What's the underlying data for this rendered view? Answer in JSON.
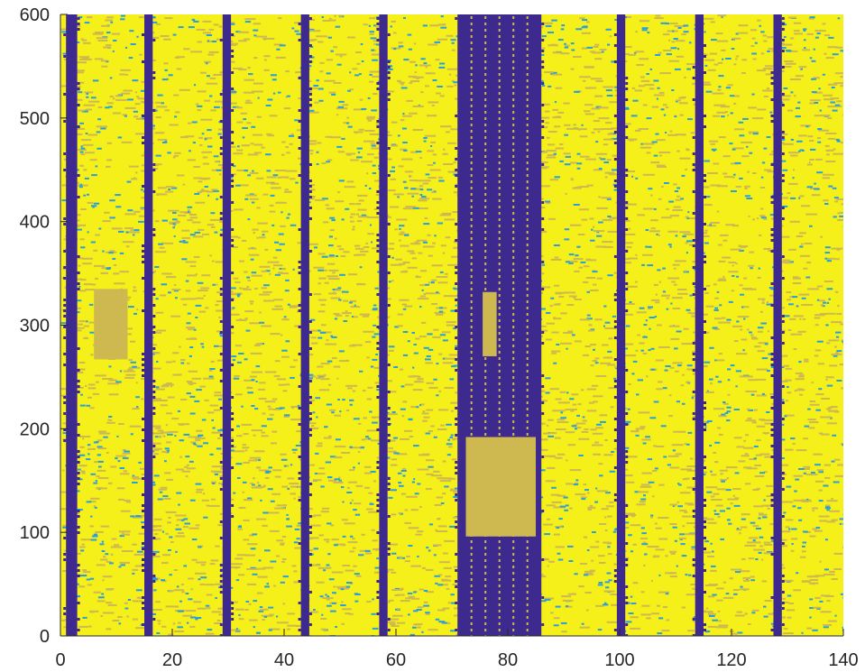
{
  "chart_data": {
    "type": "heatmap",
    "title": "",
    "xlabel": "",
    "ylabel": "",
    "xlim": [
      0,
      140
    ],
    "ylim": [
      0,
      600
    ],
    "xticks": [
      0,
      20,
      40,
      60,
      80,
      100,
      120,
      140
    ],
    "yticks": [
      0,
      100,
      200,
      300,
      400,
      500,
      600
    ],
    "xtick_labels": [
      "0",
      "20",
      "40",
      "60",
      "80",
      "100",
      "120",
      "140"
    ],
    "ytick_labels": [
      "0",
      "100",
      "200",
      "300",
      "400",
      "500",
      "600"
    ],
    "grid": false,
    "colormap": [
      "#3e2a8e",
      "#2b9fd8",
      "#cdb94f",
      "#f5ef1a"
    ],
    "background_pattern": "noise of cyan, tan and yellow cells",
    "bands": [
      {
        "x": [
          1,
          3
        ],
        "y": [
          0,
          600
        ],
        "color": "#3e2a8e"
      },
      {
        "x": [
          15,
          16.5
        ],
        "y": [
          0,
          600
        ],
        "color": "#3e2a8e"
      },
      {
        "x": [
          29,
          30.5
        ],
        "y": [
          0,
          600
        ],
        "color": "#3e2a8e"
      },
      {
        "x": [
          43,
          44.5
        ],
        "y": [
          0,
          600
        ],
        "color": "#3e2a8e"
      },
      {
        "x": [
          57,
          58.5
        ],
        "y": [
          0,
          600
        ],
        "color": "#3e2a8e"
      },
      {
        "x": [
          71,
          86
        ],
        "y": [
          0,
          600
        ],
        "color": "#3e2a8e"
      },
      {
        "x": [
          99.5,
          101
        ],
        "y": [
          0,
          600
        ],
        "color": "#3e2a8e"
      },
      {
        "x": [
          113.5,
          115
        ],
        "y": [
          0,
          600
        ],
        "color": "#3e2a8e"
      },
      {
        "x": [
          127.5,
          129
        ],
        "y": [
          0,
          600
        ],
        "color": "#3e2a8e"
      }
    ],
    "blocks": [
      {
        "x": [
          6,
          12
        ],
        "y": [
          267,
          335
        ],
        "color": "#cdb94f"
      },
      {
        "x": [
          75.5,
          78
        ],
        "y": [
          270,
          332
        ],
        "color": "#cdb94f"
      },
      {
        "x": [
          72.5,
          85
        ],
        "y": [
          96,
          192
        ],
        "color": "#cdb94f"
      }
    ]
  }
}
